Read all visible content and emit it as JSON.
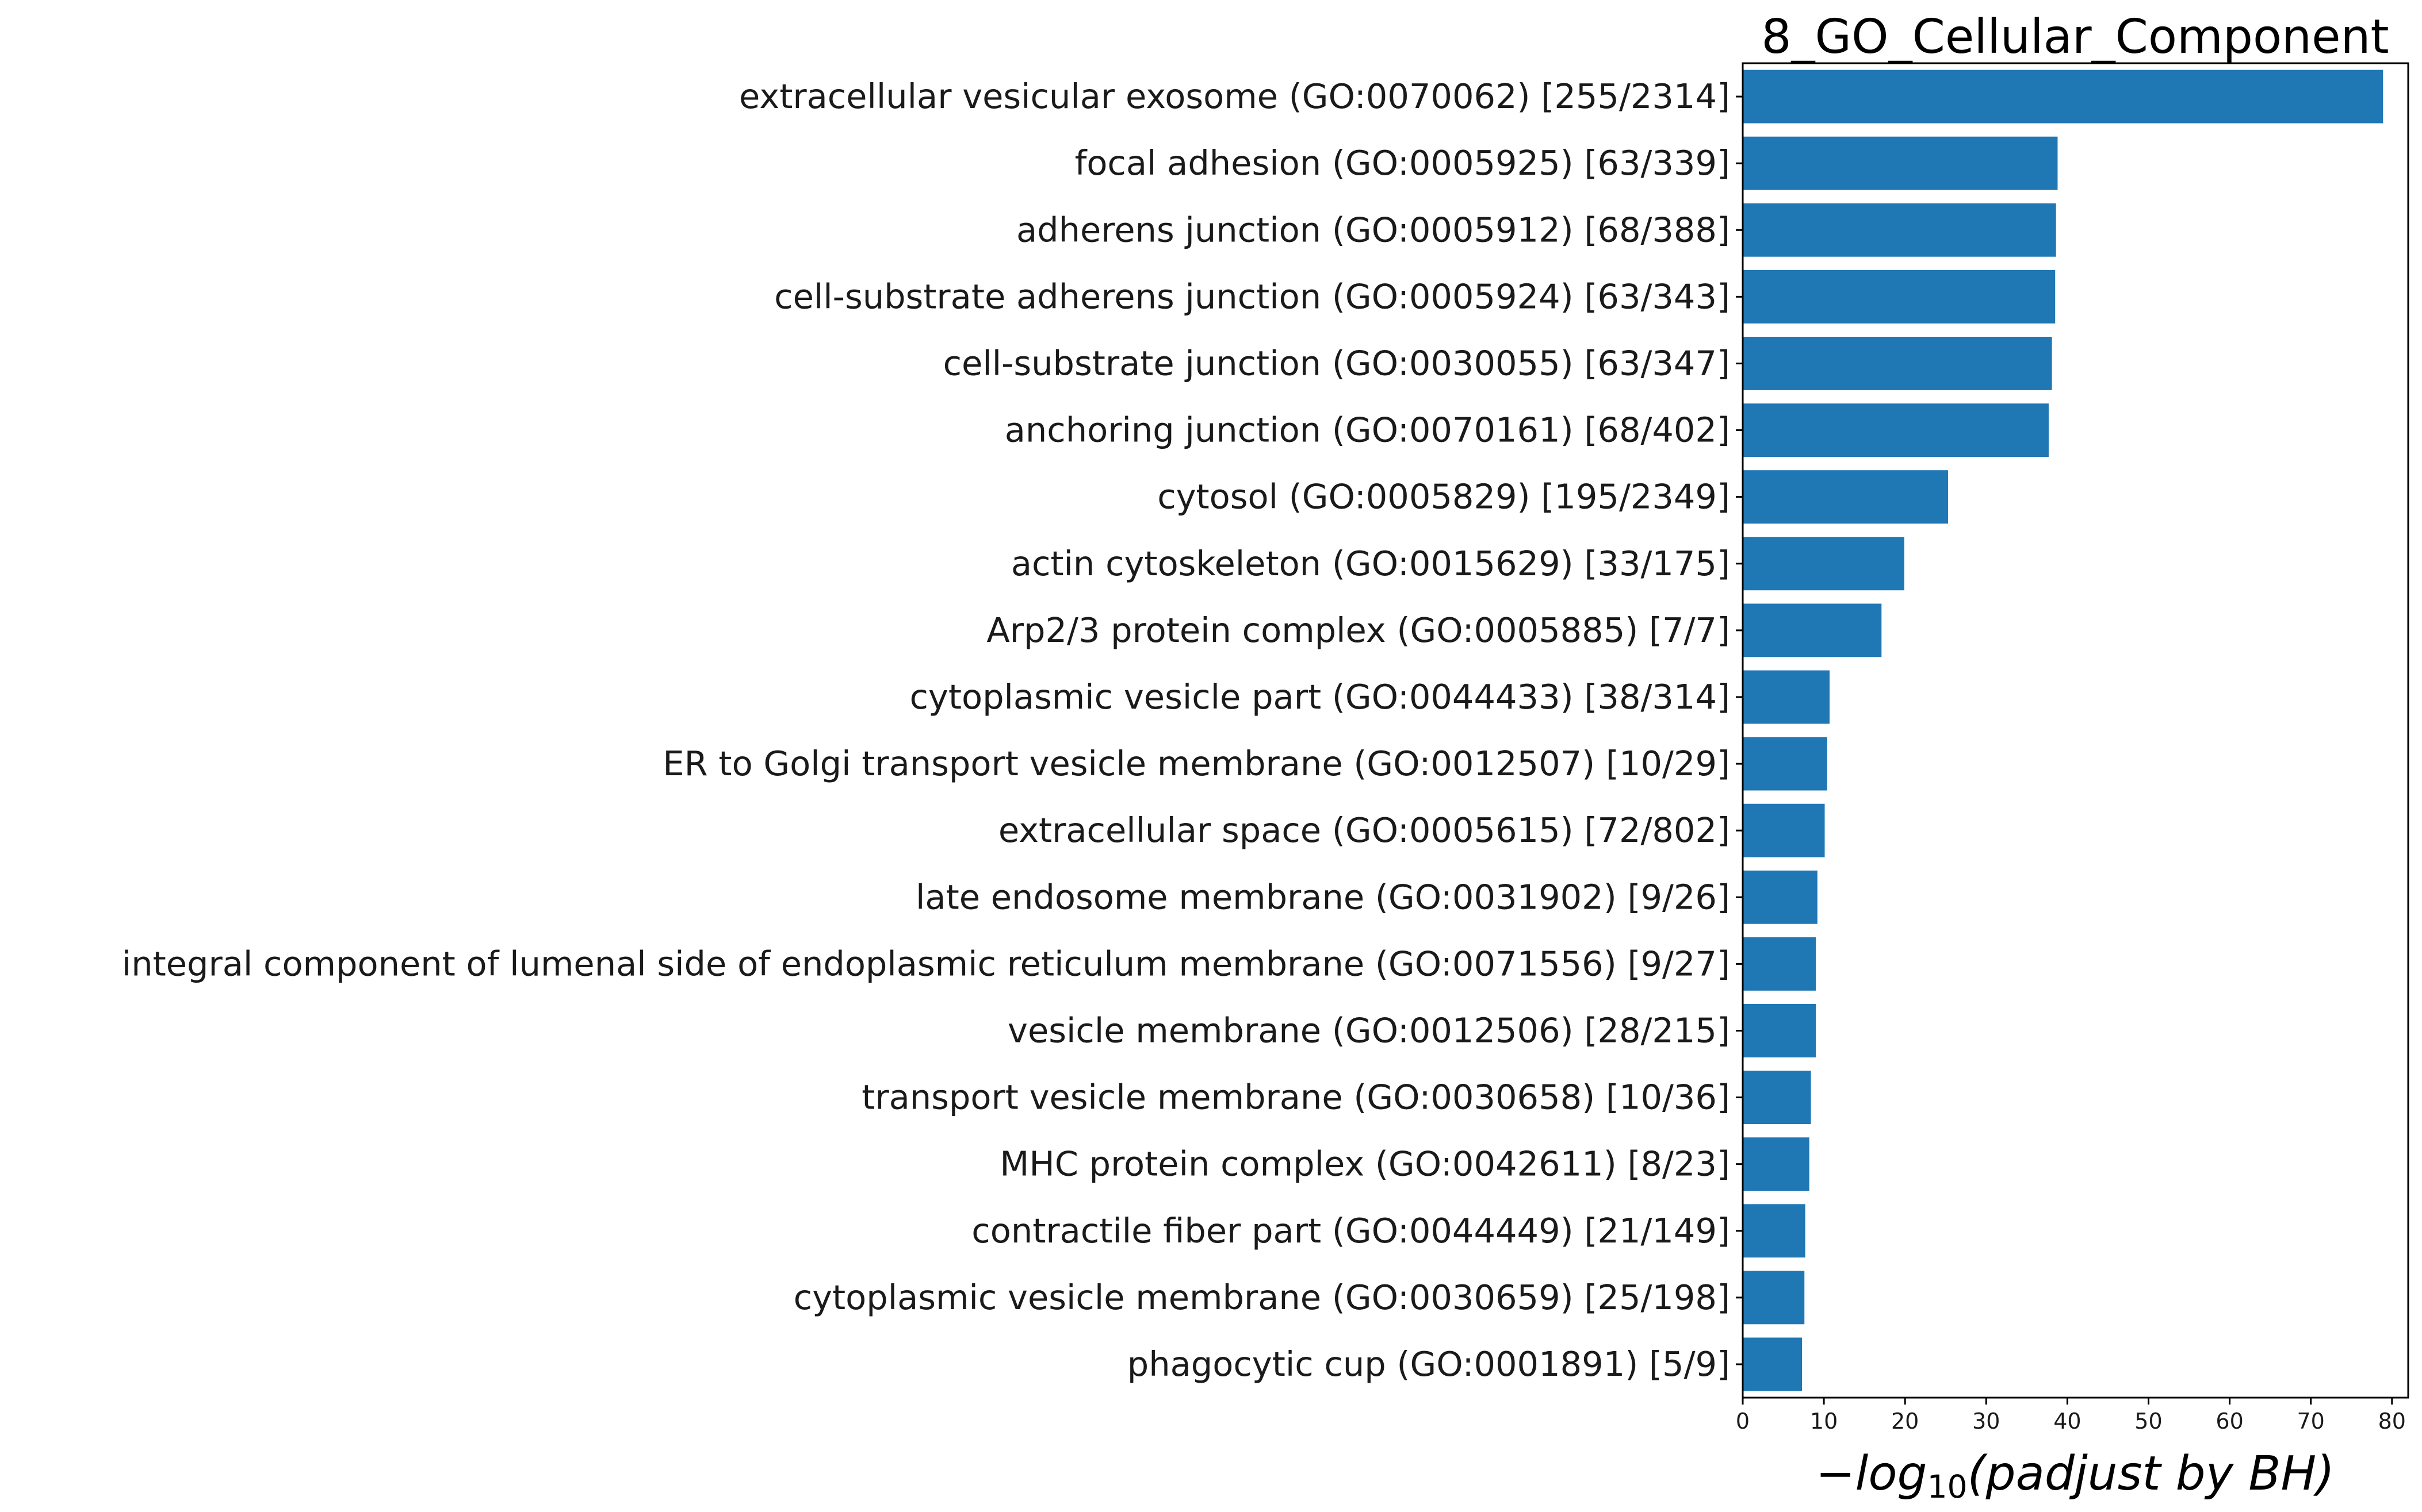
{
  "chart_data": {
    "type": "bar",
    "orientation": "horizontal",
    "title": "8_GO_Cellular_Component",
    "xlabel": "−log10(padjust by BH)",
    "xlim": [
      0,
      82
    ],
    "xticks": [
      0,
      10,
      20,
      30,
      40,
      50,
      60,
      70,
      80
    ],
    "bar_color": "#1f77b4",
    "categories": [
      "extracellular vesicular exosome (GO:0070062) [255/2314]",
      "focal adhesion (GO:0005925) [63/339]",
      "adherens junction (GO:0005912) [68/388]",
      "cell-substrate adherens junction (GO:0005924) [63/343]",
      "cell-substrate junction (GO:0030055) [63/347]",
      "anchoring junction (GO:0070161) [68/402]",
      "cytosol (GO:0005829) [195/2349]",
      "actin cytoskeleton (GO:0015629) [33/175]",
      "Arp2/3 protein complex (GO:0005885) [7/7]",
      "cytoplasmic vesicle part (GO:0044433) [38/314]",
      "ER to Golgi transport vesicle membrane (GO:0012507) [10/29]",
      "extracellular space (GO:0005615) [72/802]",
      "late endosome membrane (GO:0031902) [9/26]",
      "integral component of lumenal side of endoplasmic reticulum membrane (GO:0071556) [9/27]",
      "vesicle membrane (GO:0012506) [28/215]",
      "transport vesicle membrane (GO:0030658) [10/36]",
      "MHC protein complex (GO:0042611) [8/23]",
      "contractile fiber part (GO:0044449) [21/149]",
      "cytoplasmic vesicle membrane (GO:0030659) [25/198]",
      "phagocytic cup (GO:0001891) [5/9]"
    ],
    "values": [
      78.9,
      38.8,
      38.6,
      38.5,
      38.1,
      37.7,
      25.3,
      19.9,
      17.1,
      10.7,
      10.4,
      10.1,
      9.2,
      9.0,
      9.0,
      8.4,
      8.2,
      7.7,
      7.6,
      7.3
    ]
  }
}
